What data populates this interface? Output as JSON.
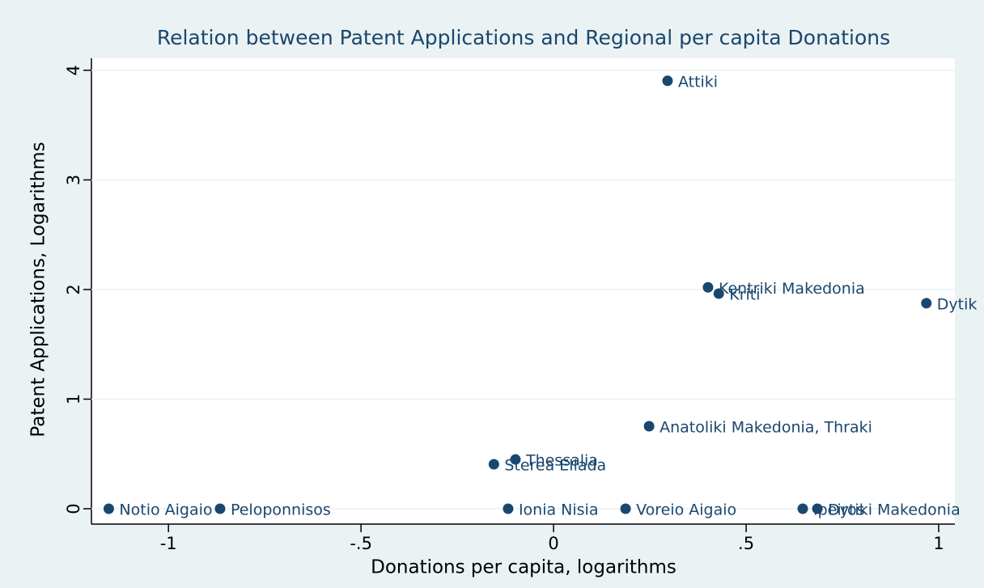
{
  "chart_data": {
    "type": "scatter",
    "title": "Relation between Patent Applications and Regional per capita Donations",
    "x_label": "Donations per capita, logarithms",
    "y_label": "Patent Applications, Logarithms",
    "color": "#1a476f",
    "grid": true,
    "xlim": [
      -1.2,
      1.042
    ],
    "ylim": [
      -0.14,
      4.11
    ],
    "xticks": [
      -1,
      {
        "value": -0.5,
        "label": "-.5"
      },
      0,
      {
        "value": 0.5,
        "label": ".5"
      },
      1
    ],
    "yticks": [
      0,
      1,
      2,
      3,
      4
    ],
    "labels": [
      "Notio Aigaio",
      "Peloponnisos",
      "Ionia Nisia",
      "Voreio Aigaio",
      "Ipeiros",
      "Dytiki Makedonia",
      "Sterea Ellada",
      "Thessalia",
      "Anatoliki Makedonia, Thraki",
      "Kentriki Makedonia",
      "Kriti",
      "Dytik",
      "Attiki"
    ],
    "x": [
      -1.155,
      -0.866,
      -0.118,
      0.187,
      0.647,
      0.685,
      -0.155,
      -0.099,
      0.248,
      0.401,
      0.429,
      0.968,
      0.296
    ],
    "values": [
      0,
      0,
      0,
      0,
      0,
      0,
      0.406,
      0.45,
      0.753,
      2.02,
      1.963,
      1.875,
      3.904
    ]
  }
}
